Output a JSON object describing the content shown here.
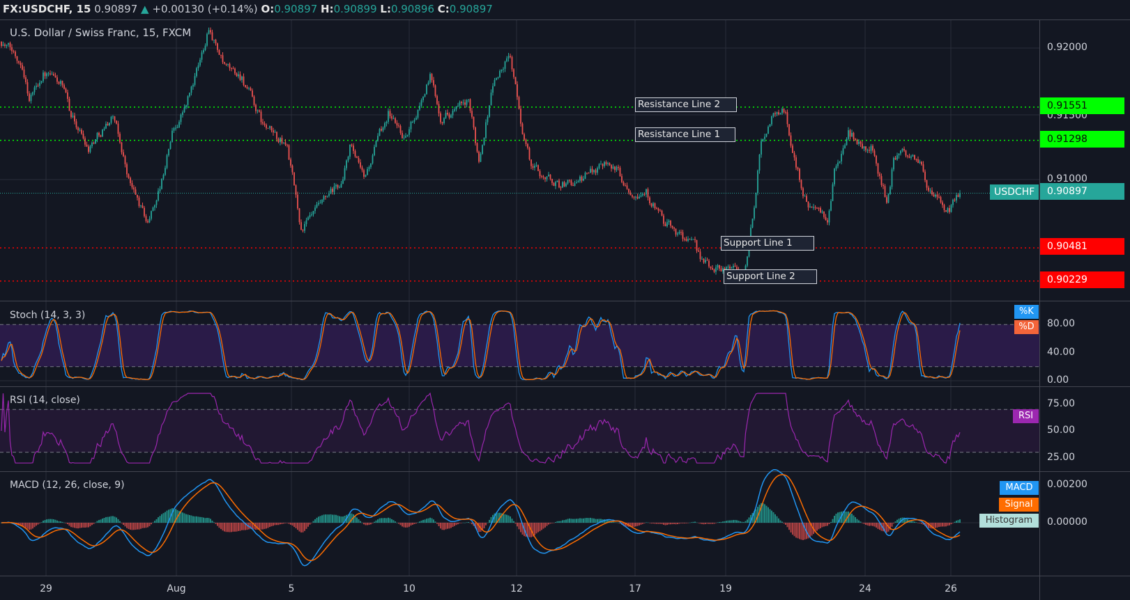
{
  "header": {
    "symbol": "FX:USDCHF, 15",
    "last": "0.90897",
    "change": "+0.00130 (+0.14%)",
    "o_label": "O:",
    "o": "0.90897",
    "h_label": "H:",
    "h": "0.90899",
    "l_label": "L:",
    "l": "0.90896",
    "c_label": "C:",
    "c": "0.90897"
  },
  "title": "U.S. Dollar / Swiss Franc, 15, FXCM",
  "colors": {
    "bg": "#131722",
    "up": "#26a69a",
    "down": "#ef5350",
    "resistance": "#00ff00",
    "support": "#ff0000",
    "k": "#2196f3",
    "d": "#ff6d00",
    "rsi": "#9c27b0",
    "macd": "#2196f3",
    "signal": "#ff6d00",
    "hist": "#b2dfdb"
  },
  "levels": [
    {
      "label": "Resistance Line 2",
      "price": 0.91551,
      "price_text": "0.91551",
      "type": "resistance"
    },
    {
      "label": "Resistance Line 1",
      "price": 0.91298,
      "price_text": "0.91298",
      "type": "resistance"
    },
    {
      "label": "Support Line 1",
      "price": 0.90481,
      "price_text": "0.90481",
      "type": "support"
    },
    {
      "label": "Support Line 2",
      "price": 0.90229,
      "price_text": "0.90229",
      "type": "support"
    }
  ],
  "current": {
    "symbol": "USDCHF",
    "price": 0.90897,
    "price_text": "0.90897"
  },
  "price_axis": [
    "0.92000",
    "0.91500",
    "0.91000"
  ],
  "stoch": {
    "title": "Stoch (14, 3, 3)",
    "k_label": "%K",
    "d_label": "%D",
    "ticks": [
      "80.00",
      "40.00",
      "0.00"
    ]
  },
  "rsi": {
    "title": "RSI (14, close)",
    "label": "RSI",
    "ticks": [
      "75.00",
      "50.00",
      "25.00"
    ]
  },
  "macd": {
    "title": "MACD (12, 26, close, 9)",
    "macd_label": "MACD",
    "signal_label": "Signal",
    "hist_label": "Histogram",
    "ticks": [
      "0.00200",
      "0.00000"
    ]
  },
  "time_axis": [
    "29",
    "Aug",
    "5",
    "10",
    "12",
    "17",
    "19",
    "24",
    "26"
  ],
  "chart_data": {
    "type": "candlestick",
    "title": "U.S. Dollar / Swiss Franc, 15, FXCM",
    "interval": "15",
    "ylim": [
      0.901,
      0.9222
    ],
    "bars": 551,
    "price_waypoints": [
      [
        0,
        0.9205
      ],
      [
        12,
        0.9189
      ],
      [
        16,
        0.9162
      ],
      [
        24,
        0.9181
      ],
      [
        34,
        0.9173
      ],
      [
        40,
        0.9149
      ],
      [
        50,
        0.9125
      ],
      [
        64,
        0.9149
      ],
      [
        74,
        0.9096
      ],
      [
        84,
        0.9067
      ],
      [
        92,
        0.9099
      ],
      [
        98,
        0.9136
      ],
      [
        106,
        0.9157
      ],
      [
        114,
        0.9189
      ],
      [
        119,
        0.9218
      ],
      [
        128,
        0.9184
      ],
      [
        138,
        0.9178
      ],
      [
        150,
        0.9141
      ],
      [
        164,
        0.9125
      ],
      [
        172,
        0.9062
      ],
      [
        184,
        0.908
      ],
      [
        196,
        0.9099
      ],
      [
        200,
        0.9125
      ],
      [
        208,
        0.9099
      ],
      [
        222,
        0.9152
      ],
      [
        232,
        0.9131
      ],
      [
        246,
        0.9178
      ],
      [
        252,
        0.9149
      ],
      [
        268,
        0.9157
      ],
      [
        274,
        0.9115
      ],
      [
        282,
        0.9173
      ],
      [
        292,
        0.9194
      ],
      [
        298,
        0.9144
      ],
      [
        304,
        0.911
      ],
      [
        320,
        0.9096
      ],
      [
        332,
        0.9099
      ],
      [
        348,
        0.9117
      ],
      [
        360,
        0.9094
      ],
      [
        370,
        0.9091
      ],
      [
        380,
        0.9067
      ],
      [
        394,
        0.9054
      ],
      [
        406,
        0.9033
      ],
      [
        420,
        0.9035
      ],
      [
        426,
        0.9025
      ],
      [
        432,
        0.9078
      ],
      [
        436,
        0.9131
      ],
      [
        444,
        0.9152
      ],
      [
        450,
        0.9152
      ],
      [
        454,
        0.912
      ],
      [
        462,
        0.9083
      ],
      [
        474,
        0.9067
      ],
      [
        478,
        0.9104
      ],
      [
        486,
        0.9136
      ],
      [
        494,
        0.9125
      ],
      [
        500,
        0.9123
      ],
      [
        508,
        0.9083
      ],
      [
        512,
        0.9115
      ],
      [
        520,
        0.912
      ],
      [
        528,
        0.911
      ],
      [
        534,
        0.9086
      ],
      [
        544,
        0.9075
      ],
      [
        550,
        0.90897
      ]
    ],
    "indicators": {
      "stoch": {
        "k": 14,
        "smooth": 3,
        "d": 3,
        "bands": [
          20,
          80
        ],
        "ylim": [
          0,
          100
        ]
      },
      "rsi": {
        "length": 14,
        "bands": [
          30,
          70
        ],
        "ylim": [
          20,
          85
        ]
      },
      "macd": {
        "fast": 12,
        "slow": 26,
        "signal": 9,
        "ylim": [
          -0.0014,
          0.0025
        ]
      }
    }
  }
}
